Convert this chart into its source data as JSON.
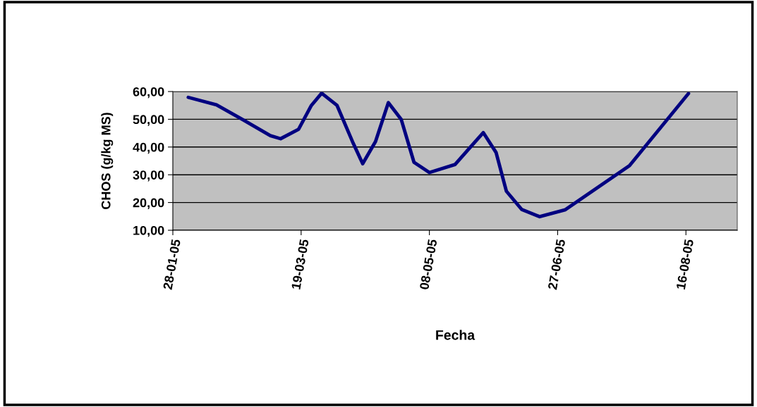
{
  "chart_data": {
    "type": "line",
    "xlabel": "Fecha",
    "ylabel": "CHOS (g/kg MS)",
    "x": [
      "2005-02-03",
      "2005-02-14",
      "2005-02-24",
      "2005-03-07",
      "2005-03-11",
      "2005-03-18",
      "2005-03-23",
      "2005-03-27",
      "2005-04-02",
      "2005-04-08",
      "2005-04-12",
      "2005-04-17",
      "2005-04-22",
      "2005-04-27",
      "2005-05-02",
      "2005-05-08",
      "2005-05-18",
      "2005-05-24",
      "2005-05-29",
      "2005-06-03",
      "2005-06-07",
      "2005-06-13",
      "2005-06-20",
      "2005-06-30",
      "2005-07-25",
      "2005-08-17"
    ],
    "series": [
      {
        "color": "#000080",
        "values": [
          57.9,
          55.2,
          50,
          44.1,
          43,
          46.4,
          55,
          59.4,
          55,
          42,
          34,
          42,
          56,
          50,
          34.5,
          30.8,
          33.7,
          40,
          45.2,
          38,
          24.1,
          17.5,
          14.9,
          17.4,
          33.3,
          59.3
        ]
      }
    ],
    "xlim": [
      "2005-01-28",
      "2005-09-05"
    ],
    "xticks": [
      {
        "value": "2005-01-28",
        "label": "28-01-05"
      },
      {
        "value": "2005-03-19",
        "label": "19-03-05"
      },
      {
        "value": "2005-05-08",
        "label": "08-05-05"
      },
      {
        "value": "2005-06-27",
        "label": "27-06-05"
      },
      {
        "value": "2005-08-16",
        "label": "16-08-05"
      }
    ],
    "ylim": [
      10,
      60
    ],
    "yticks": [
      {
        "value": 10,
        "label": "10,00"
      },
      {
        "value": 20,
        "label": "20,00"
      },
      {
        "value": 30,
        "label": "30,00"
      },
      {
        "value": 40,
        "label": "40,00"
      },
      {
        "value": 50,
        "label": "50,00"
      },
      {
        "value": 60,
        "label": "60,00"
      }
    ],
    "grid": "y",
    "marker": "none",
    "line_style": "solid",
    "legend": false
  }
}
